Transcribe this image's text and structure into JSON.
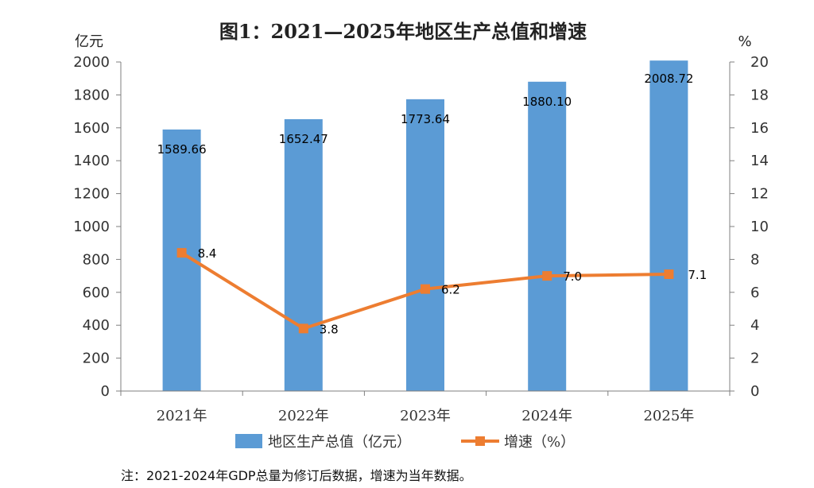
{
  "chart_data": {
    "type": "bar",
    "title": "图1：2021—2025年地区生产总值和增速",
    "left_unit": "亿元",
    "right_unit": "%",
    "categories": [
      "2021年",
      "2022年",
      "2023年",
      "2024年",
      "2025年"
    ],
    "series": [
      {
        "name": "地区生产总值（亿元）",
        "type": "bar",
        "axis": "left",
        "color": "#5b9bd5",
        "values": [
          1589.66,
          1652.47,
          1773.64,
          1880.1,
          2008.72
        ],
        "labels": [
          "1589.66",
          "1652.47",
          "1773.64",
          "1880.10",
          "2008.72"
        ]
      },
      {
        "name": "增速（%）",
        "type": "line",
        "axis": "right",
        "color": "#ed7d31",
        "values": [
          8.4,
          3.8,
          6.2,
          7.0,
          7.1
        ],
        "labels": [
          "8.4",
          "3.8",
          "6.2",
          "7.0",
          "7.1"
        ]
      }
    ],
    "y_left": {
      "min": 0,
      "max": 2000,
      "step": 200
    },
    "y_right": {
      "min": 0,
      "max": 20,
      "step": 2
    },
    "legend_position": "bottom",
    "grid": false
  },
  "note": "注：2021-2024年GDP总量为修订后数据，增速为当年数据。"
}
